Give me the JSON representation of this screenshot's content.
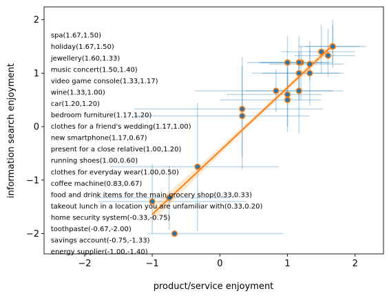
{
  "chart_data": {
    "type": "scatter",
    "title": "",
    "xlabel": "product/service enjoyment",
    "ylabel": "information search enjoyment",
    "xlim": [
      -2.6,
      2.42
    ],
    "ylim": [
      -2.38,
      2.24
    ],
    "xticks": [
      -2,
      -1,
      0,
      1,
      2
    ],
    "yticks": [
      -2,
      -1,
      0,
      1,
      2
    ],
    "grid": false,
    "colors": {
      "marker_fill": "#1f77b4",
      "marker_edge": "#ff7f0e",
      "errorbar": "#1f77b4",
      "fit_line": "#ff7f0e",
      "ci_band": "#ff7f0e"
    },
    "points": [
      {
        "label": "spa",
        "x": 1.67,
        "y": 1.5,
        "xerr": [
          0.5,
          0.5
        ],
        "yerr": [
          0.4,
          0.5
        ]
      },
      {
        "label": "holiday",
        "x": 1.67,
        "y": 1.5,
        "xerr": [
          0.4,
          0.4
        ],
        "yerr": [
          0.3,
          0.4
        ]
      },
      {
        "label": "jewellery",
        "x": 1.6,
        "y": 1.33,
        "xerr": [
          0.5,
          0.4
        ],
        "yerr": [
          0.4,
          0.5
        ]
      },
      {
        "label": "music concert",
        "x": 1.5,
        "y": 1.4,
        "xerr": [
          0.6,
          0.5
        ],
        "yerr": [
          0.4,
          0.5
        ]
      },
      {
        "label": "video game console",
        "x": 1.33,
        "y": 1.17,
        "xerr": [
          0.6,
          0.5
        ],
        "yerr": [
          0.3,
          0.3
        ]
      },
      {
        "label": "wine",
        "x": 1.33,
        "y": 1.0,
        "xerr": [
          0.7,
          0.5
        ],
        "yerr": [
          0.6,
          0.6
        ]
      },
      {
        "label": "car",
        "x": 1.2,
        "y": 1.2,
        "xerr": [
          0.6,
          0.4
        ],
        "yerr": [
          0.7,
          0.3
        ]
      },
      {
        "label": "bedroom furniture",
        "x": 1.17,
        "y": 1.2,
        "xerr": [
          0.6,
          0.5
        ],
        "yerr": [
          0.5,
          0.5
        ]
      },
      {
        "label": "clothes for a friend's wedding",
        "x": 1.17,
        "y": 1.0,
        "xerr": [
          0.7,
          0.6
        ],
        "yerr": [
          0.5,
          0.4
        ]
      },
      {
        "label": "new smartphone",
        "x": 1.17,
        "y": 0.67,
        "xerr": [
          0.8,
          0.5
        ],
        "yerr": [
          0.8,
          0.5
        ]
      },
      {
        "label": "present for a close relative",
        "x": 1.0,
        "y": 1.2,
        "xerr": [
          0.6,
          0.5
        ],
        "yerr": [
          0.5,
          0.5
        ]
      },
      {
        "label": "running shoes",
        "x": 1.0,
        "y": 0.6,
        "xerr": [
          0.9,
          0.5
        ],
        "yerr": [
          0.6,
          0.6
        ]
      },
      {
        "label": "clothes for everyday wear",
        "x": 1.0,
        "y": 0.5,
        "xerr": [
          1.0,
          0.5
        ],
        "yerr": [
          0.6,
          0.6
        ]
      },
      {
        "label": "coffee machine",
        "x": 0.83,
        "y": 0.67,
        "xerr": [
          1.2,
          1.0
        ],
        "yerr": [
          0.4,
          0.4
        ]
      },
      {
        "label": "food and drink items for the main grocery shop",
        "x": 0.33,
        "y": 0.33,
        "xerr": [
          1.6,
          1.2
        ],
        "yerr": [
          0.9,
          0.8
        ]
      },
      {
        "label": "takeout lunch in a location you are unfamiliar with",
        "x": 0.33,
        "y": 0.2,
        "xerr": [
          1.6,
          1.0
        ],
        "yerr": [
          1.0,
          1.1
        ]
      },
      {
        "label": "home security system",
        "x": -0.33,
        "y": -0.75,
        "xerr": [
          1.3,
          1.2
        ],
        "yerr": [
          1.2,
          1.2
        ]
      },
      {
        "label": "toothpaste",
        "x": -0.67,
        "y": -2.0,
        "xerr": [
          0.4,
          1.6
        ],
        "yerr": [
          0.0,
          0.0
        ]
      },
      {
        "label": "savings account",
        "x": -0.75,
        "y": -1.33,
        "xerr": [
          1.1,
          0.9
        ],
        "yerr": [
          0.6,
          0.6
        ]
      },
      {
        "label": "energy supplier",
        "x": -1.0,
        "y": -1.4,
        "xerr": [
          0.8,
          1.4
        ],
        "yerr": [
          0.6,
          0.7
        ]
      }
    ],
    "annotations": [
      "spa(1.67,1.50)",
      "holiday(1.67,1.50)",
      "jewellery(1.60,1.33)",
      "music concert(1.50,1.40)",
      "video game console(1.33,1.17)",
      "wine(1.33,1.00)",
      "car(1.20,1.20)",
      "bedroom furniture(1.17,1.20)",
      "clothes for a friend's wedding(1.17,1.00)",
      "new smartphone(1.17,0.67)",
      "present for a close relative(1.00,1.20)",
      "running shoes(1.00,0.60)",
      "clothes for everyday wear(1.00,0.50)",
      "coffee machine(0.83,0.67)",
      "food and drink items for the main grocery shop(0.33,0.33)",
      "takeout lunch in a location you are unfamiliar with(0.33,0.20)",
      "home security system(-0.33,-0.75)",
      "toothpaste(-0.67,-2.00)",
      "savings account(-0.75,-1.33)",
      "energy supplier(-1.00,-1.40)"
    ],
    "annotation_start_y": 1.71,
    "annotation_step_y": 0.213,
    "annotation_x": -2.5,
    "fit": {
      "x_range": [
        -1.0,
        1.67
      ],
      "slope": 1.185,
      "intercept": -0.455,
      "ci_half_width_ends": 0.15,
      "ci_half_width_center": 0.05,
      "x_center": 0.8
    }
  }
}
